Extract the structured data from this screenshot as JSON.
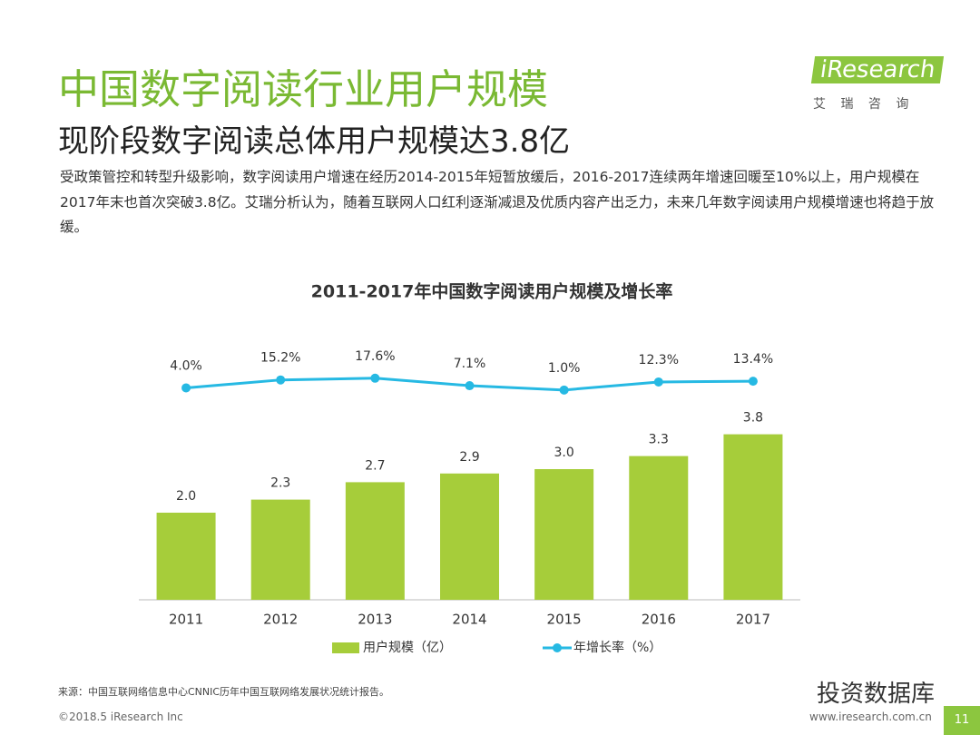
{
  "header": {
    "title": "中国数字阅读行业用户规模",
    "subtitle": "现阶段数字阅读总体用户规模达3.8亿",
    "description": "受政策管控和转型升级影响，数字阅读用户增速在经历2014-2015年短暂放缓后，2016-2017连续两年增速回暖至10%以上，用户规模在2017年末也首次突破3.8亿。艾瑞分析认为，随着互联网人口红利逐渐减退及优质内容产出乏力，未来几年数字阅读用户规模增速也将趋于放缓。"
  },
  "logo": {
    "name": "iResearch",
    "subtitle": "艾 瑞 咨 询"
  },
  "chart_data": {
    "type": "bar",
    "title": "2011-2017年中国数字阅读用户规模及增长率",
    "categories": [
      "2011",
      "2012",
      "2013",
      "2014",
      "2015",
      "2016",
      "2017"
    ],
    "series": [
      {
        "name": "用户规模（亿）",
        "type": "bar",
        "color": "#a6cd3a",
        "values": [
          2.0,
          2.3,
          2.7,
          2.9,
          3.0,
          3.3,
          3.8
        ],
        "value_labels": [
          "2.0",
          "2.3",
          "2.7",
          "2.9",
          "3.0",
          "3.3",
          "3.8"
        ]
      },
      {
        "name": "年增长率（%）",
        "type": "line",
        "axis": "y2",
        "color": "#26b9e3",
        "values": [
          4.0,
          15.2,
          17.6,
          7.1,
          1.0,
          12.3,
          13.4
        ],
        "value_labels": [
          "4.0%",
          "15.2%",
          "17.6%",
          "7.1%",
          "1.0%",
          "12.3%",
          "13.4%"
        ]
      }
    ],
    "ylim": [
      0,
      8
    ],
    "y2lim": [
      -294,
      196
    ],
    "legend": "bottom"
  },
  "footer": {
    "source": "来源：中国互联网络信息中心CNNIC历年中国互联网络发展状况统计报告。",
    "copyright": "©2018.5 iResearch Inc",
    "website": "www.iresearch.com.cn",
    "page": "11",
    "watermark": "投资数据库"
  }
}
